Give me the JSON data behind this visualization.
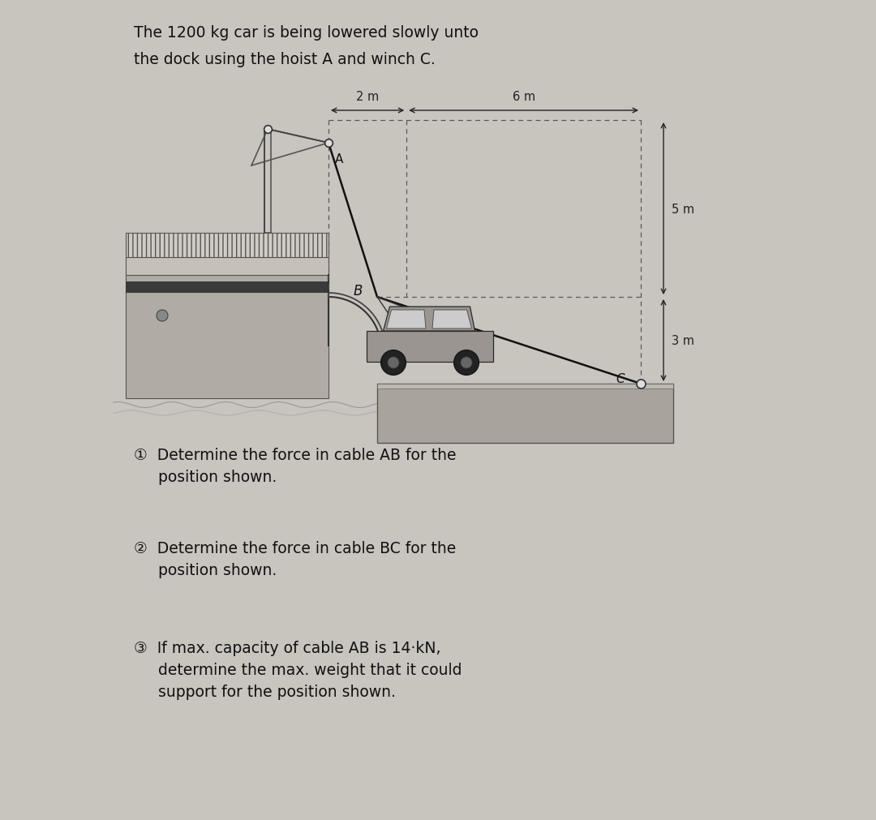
{
  "bg_color": "#c8c4be",
  "title_line1": "The 1200 kg car is being lowered slowly unto",
  "title_line2": "the dock using the hoist A and winch C.",
  "title_fontsize": 13.5,
  "q_fontsize": 13.5,
  "dim_2m": "2 m",
  "dim_6m": "6 m",
  "dim_5m": "5 m",
  "dim_3m": "3 m",
  "label_A": "A",
  "label_B": "B",
  "label_C": "C",
  "line_color": "#111111",
  "dim_color": "#222222",
  "dash_color": "#555555",
  "ship_body_color": "#b0aca4",
  "ship_deck_color": "#c0bbb4",
  "hatch_color": "#888880",
  "dark_band_color": "#3a3a3a",
  "dock_color": "#a8a49c",
  "water_color": "#888888"
}
